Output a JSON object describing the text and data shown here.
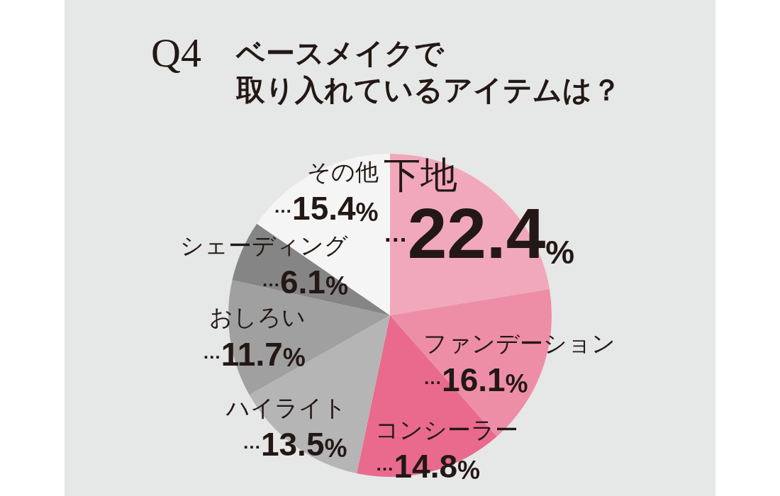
{
  "chart_data": {
    "type": "pie",
    "title": "Q4",
    "subtitle": "ベースメイクで取り入れているアイテムは？",
    "categories": [
      "下地",
      "ファンデーション",
      "コンシーラー",
      "ハイライト",
      "おしろい",
      "シェーディング",
      "その他"
    ],
    "values": [
      22.4,
      16.1,
      14.8,
      13.5,
      11.7,
      6.1,
      15.4
    ],
    "colors": [
      "#f2a8bb",
      "#ee8ea6",
      "#e96a8d",
      "#b5b5b5",
      "#a0a0a0",
      "#858585",
      "#f5f5f5"
    ],
    "value_labels": [
      "…22.4%",
      "…16.1%",
      "…14.8%",
      "…13.5%",
      "…11.7%",
      "…6.1%",
      "…15.4%"
    ]
  }
}
